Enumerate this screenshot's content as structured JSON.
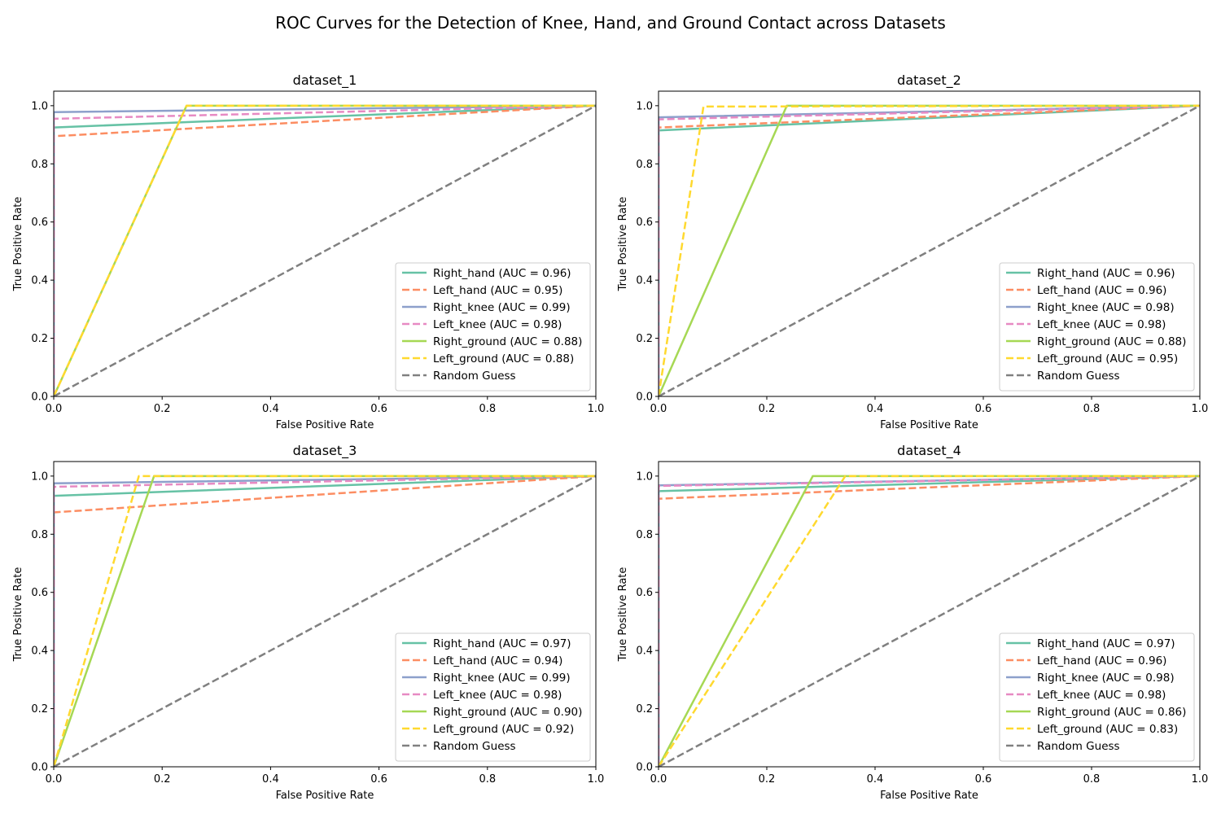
{
  "title": "ROC Curves for the Detection of Knee, Hand, and Ground Contact across Datasets",
  "colors": {
    "Right_hand": "#66c2a5",
    "Left_hand": "#fc8d62",
    "Right_knee": "#8da0cb",
    "Left_knee": "#e78ac3",
    "Right_ground": "#a6d854",
    "Left_ground": "#ffd92f",
    "Random Guess": "#808080"
  },
  "chart_data": [
    {
      "type": "line",
      "title": "dataset_1",
      "xlabel": "False Positive Rate",
      "ylabel": "True Positive Rate",
      "xlim": [
        0,
        1
      ],
      "ylim": [
        0,
        1.05
      ],
      "xticks": [
        "0.0",
        "0.2",
        "0.4",
        "0.6",
        "0.8",
        "1.0"
      ],
      "yticks": [
        "0.0",
        "0.2",
        "0.4",
        "0.6",
        "0.8",
        "1.0"
      ],
      "legend_position": "lower-right",
      "series": [
        {
          "name": "Right_hand (AUC = 0.96)",
          "key": "Right_hand",
          "dash": false,
          "x": [
            0,
            0,
            1
          ],
          "y": [
            0,
            0.925,
            1
          ]
        },
        {
          "name": "Left_hand (AUC = 0.95)",
          "key": "Left_hand",
          "dash": true,
          "x": [
            0,
            0,
            1
          ],
          "y": [
            0,
            0.895,
            1
          ]
        },
        {
          "name": "Right_knee (AUC = 0.99)",
          "key": "Right_knee",
          "dash": false,
          "x": [
            0,
            0,
            1
          ],
          "y": [
            0,
            0.978,
            1
          ]
        },
        {
          "name": "Left_knee (AUC = 0.98)",
          "key": "Left_knee",
          "dash": true,
          "x": [
            0,
            0,
            1
          ],
          "y": [
            0,
            0.955,
            1
          ]
        },
        {
          "name": "Right_ground (AUC = 0.88)",
          "key": "Right_ground",
          "dash": false,
          "x": [
            0,
            0.245,
            1
          ],
          "y": [
            0,
            1.0,
            1
          ]
        },
        {
          "name": "Left_ground (AUC = 0.88)",
          "key": "Left_ground",
          "dash": true,
          "x": [
            0,
            0.245,
            1
          ],
          "y": [
            0,
            1.0,
            1
          ]
        },
        {
          "name": "Random Guess",
          "key": "Random Guess",
          "dash": true,
          "x": [
            0,
            1
          ],
          "y": [
            0,
            1
          ]
        }
      ]
    },
    {
      "type": "line",
      "title": "dataset_2",
      "xlabel": "False Positive Rate",
      "ylabel": "True Positive Rate",
      "xlim": [
        0,
        1
      ],
      "ylim": [
        0,
        1.05
      ],
      "xticks": [
        "0.0",
        "0.2",
        "0.4",
        "0.6",
        "0.8",
        "1.0"
      ],
      "yticks": [
        "0.0",
        "0.2",
        "0.4",
        "0.6",
        "0.8",
        "1.0"
      ],
      "legend_position": "lower-right",
      "series": [
        {
          "name": "Right_hand (AUC = 0.96)",
          "key": "Right_hand",
          "dash": false,
          "x": [
            0,
            0,
            1
          ],
          "y": [
            0,
            0.915,
            1
          ]
        },
        {
          "name": "Left_hand (AUC = 0.96)",
          "key": "Left_hand",
          "dash": true,
          "x": [
            0,
            0,
            1
          ],
          "y": [
            0,
            0.925,
            1
          ]
        },
        {
          "name": "Right_knee (AUC = 0.98)",
          "key": "Right_knee",
          "dash": false,
          "x": [
            0,
            0,
            1
          ],
          "y": [
            0,
            0.96,
            1
          ]
        },
        {
          "name": "Left_knee (AUC = 0.98)",
          "key": "Left_knee",
          "dash": true,
          "x": [
            0,
            0,
            1
          ],
          "y": [
            0,
            0.953,
            1
          ]
        },
        {
          "name": "Right_ground (AUC = 0.88)",
          "key": "Right_ground",
          "dash": false,
          "x": [
            0,
            0.237,
            1
          ],
          "y": [
            0,
            1.0,
            1
          ]
        },
        {
          "name": "Left_ground (AUC = 0.95)",
          "key": "Left_ground",
          "dash": true,
          "x": [
            0,
            0.083,
            1
          ],
          "y": [
            0,
            0.997,
            1
          ]
        },
        {
          "name": "Random Guess",
          "key": "Random Guess",
          "dash": true,
          "x": [
            0,
            1
          ],
          "y": [
            0,
            1
          ]
        }
      ]
    },
    {
      "type": "line",
      "title": "dataset_3",
      "xlabel": "False Positive Rate",
      "ylabel": "True Positive Rate",
      "xlim": [
        0,
        1
      ],
      "ylim": [
        0,
        1.05
      ],
      "xticks": [
        "0.0",
        "0.2",
        "0.4",
        "0.6",
        "0.8",
        "1.0"
      ],
      "yticks": [
        "0.0",
        "0.2",
        "0.4",
        "0.6",
        "0.8",
        "1.0"
      ],
      "legend_position": "lower-right",
      "series": [
        {
          "name": "Right_hand (AUC = 0.97)",
          "key": "Right_hand",
          "dash": false,
          "x": [
            0,
            0,
            1
          ],
          "y": [
            0,
            0.932,
            1
          ]
        },
        {
          "name": "Left_hand (AUC = 0.94)",
          "key": "Left_hand",
          "dash": true,
          "x": [
            0,
            0,
            1
          ],
          "y": [
            0,
            0.875,
            1
          ]
        },
        {
          "name": "Right_knee (AUC = 0.99)",
          "key": "Right_knee",
          "dash": false,
          "x": [
            0,
            0,
            1
          ],
          "y": [
            0,
            0.975,
            1
          ]
        },
        {
          "name": "Left_knee (AUC = 0.98)",
          "key": "Left_knee",
          "dash": true,
          "x": [
            0,
            0,
            1
          ],
          "y": [
            0,
            0.963,
            1
          ]
        },
        {
          "name": "Right_ground (AUC = 0.90)",
          "key": "Right_ground",
          "dash": false,
          "x": [
            0,
            0.185,
            1
          ],
          "y": [
            0,
            1.0,
            1
          ]
        },
        {
          "name": "Left_ground (AUC = 0.92)",
          "key": "Left_ground",
          "dash": true,
          "x": [
            0,
            0.157,
            1
          ],
          "y": [
            0,
            1.0,
            1
          ]
        },
        {
          "name": "Random Guess",
          "key": "Random Guess",
          "dash": true,
          "x": [
            0,
            1
          ],
          "y": [
            0,
            1
          ]
        }
      ]
    },
    {
      "type": "line",
      "title": "dataset_4",
      "xlabel": "False Positive Rate",
      "ylabel": "True Positive Rate",
      "xlim": [
        0,
        1
      ],
      "ylim": [
        0,
        1.05
      ],
      "xticks": [
        "0.0",
        "0.2",
        "0.4",
        "0.6",
        "0.8",
        "1.0"
      ],
      "yticks": [
        "0.0",
        "0.2",
        "0.4",
        "0.6",
        "0.8",
        "1.0"
      ],
      "legend_position": "lower-right",
      "series": [
        {
          "name": "Right_hand (AUC = 0.97)",
          "key": "Right_hand",
          "dash": false,
          "x": [
            0,
            0,
            1
          ],
          "y": [
            0,
            0.948,
            1
          ]
        },
        {
          "name": "Left_hand (AUC = 0.96)",
          "key": "Left_hand",
          "dash": true,
          "x": [
            0,
            0,
            1
          ],
          "y": [
            0,
            0.922,
            1
          ]
        },
        {
          "name": "Right_knee (AUC = 0.98)",
          "key": "Right_knee",
          "dash": false,
          "x": [
            0,
            0,
            1
          ],
          "y": [
            0,
            0.968,
            1
          ]
        },
        {
          "name": "Left_knee (AUC = 0.98)",
          "key": "Left_knee",
          "dash": true,
          "x": [
            0,
            0,
            1
          ],
          "y": [
            0,
            0.966,
            1
          ]
        },
        {
          "name": "Right_ground (AUC = 0.86)",
          "key": "Right_ground",
          "dash": false,
          "x": [
            0,
            0.285,
            1
          ],
          "y": [
            0,
            1.0,
            1
          ]
        },
        {
          "name": "Left_ground (AUC = 0.83)",
          "key": "Left_ground",
          "dash": true,
          "x": [
            0,
            0.345,
            1
          ],
          "y": [
            0,
            1.0,
            1
          ]
        },
        {
          "name": "Random Guess",
          "key": "Random Guess",
          "dash": true,
          "x": [
            0,
            1
          ],
          "y": [
            0,
            1
          ]
        }
      ]
    }
  ]
}
